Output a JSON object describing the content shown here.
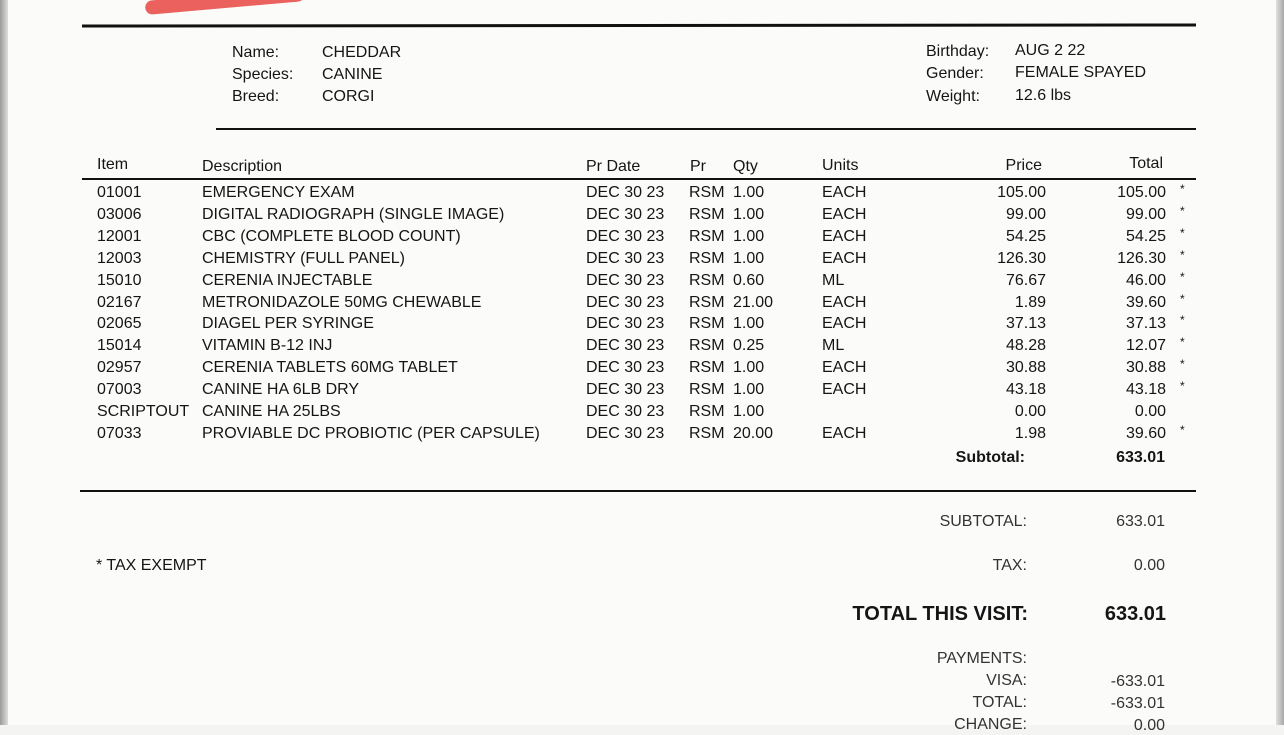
{
  "patient": {
    "name_label": "Name:",
    "name": "CHEDDAR",
    "species_label": "Species:",
    "species": "CANINE",
    "breed_label": "Breed:",
    "breed": "CORGI",
    "birthday_label": "Birthday:",
    "birthday": "AUG 2 22",
    "gender_label": "Gender:",
    "gender": "FEMALE SPAYED",
    "weight_label": "Weight:",
    "weight": "12.6 lbs"
  },
  "table": {
    "headers": {
      "item": "Item",
      "description": "Description",
      "pr_date": "Pr Date",
      "pr": "Pr",
      "qty": "Qty",
      "units": "Units",
      "price": "Price",
      "total": "Total"
    },
    "rows": [
      {
        "item": "01001",
        "description": "EMERGENCY EXAM",
        "pr_date": "DEC 30 23",
        "pr": "RSM",
        "qty": "1.00",
        "units": "EACH",
        "price": "105.00",
        "total": "105.00",
        "flag": "*"
      },
      {
        "item": "03006",
        "description": "DIGITAL RADIOGRAPH (SINGLE IMAGE)",
        "pr_date": "DEC 30 23",
        "pr": "RSM",
        "qty": "1.00",
        "units": "EACH",
        "price": "99.00",
        "total": "99.00",
        "flag": "*"
      },
      {
        "item": "12001",
        "description": "CBC (COMPLETE BLOOD COUNT)",
        "pr_date": "DEC 30 23",
        "pr": "RSM",
        "qty": "1.00",
        "units": "EACH",
        "price": "54.25",
        "total": "54.25",
        "flag": "*"
      },
      {
        "item": "12003",
        "description": "CHEMISTRY (FULL PANEL)",
        "pr_date": "DEC 30 23",
        "pr": "RSM",
        "qty": "1.00",
        "units": "EACH",
        "price": "126.30",
        "total": "126.30",
        "flag": "*"
      },
      {
        "item": "15010",
        "description": "CERENIA INJECTABLE",
        "pr_date": "DEC 30 23",
        "pr": "RSM",
        "qty": "0.60",
        "units": "ML",
        "price": "76.67",
        "total": "46.00",
        "flag": "*"
      },
      {
        "item": "02167",
        "description": "METRONIDAZOLE 50MG CHEWABLE",
        "pr_date": "DEC 30 23",
        "pr": "RSM",
        "qty": "21.00",
        "units": "EACH",
        "price": "1.89",
        "total": "39.60",
        "flag": "*"
      },
      {
        "item": "02065",
        "description": "DIAGEL PER SYRINGE",
        "pr_date": "DEC 30 23",
        "pr": "RSM",
        "qty": "1.00",
        "units": "EACH",
        "price": "37.13",
        "total": "37.13",
        "flag": "*"
      },
      {
        "item": "15014",
        "description": "VITAMIN B-12 INJ",
        "pr_date": "DEC 30 23",
        "pr": "RSM",
        "qty": "0.25",
        "units": "ML",
        "price": "48.28",
        "total": "12.07",
        "flag": "*"
      },
      {
        "item": "02957",
        "description": "CERENIA TABLETS 60MG TABLET",
        "pr_date": "DEC 30 23",
        "pr": "RSM",
        "qty": "1.00",
        "units": "EACH",
        "price": "30.88",
        "total": "30.88",
        "flag": "*"
      },
      {
        "item": "07003",
        "description": "CANINE HA 6LB DRY",
        "pr_date": "DEC 30 23",
        "pr": "RSM",
        "qty": "1.00",
        "units": "EACH",
        "price": "43.18",
        "total": "43.18",
        "flag": "*"
      },
      {
        "item": "SCRIPTOUT",
        "description": "CANINE HA 25LBS",
        "pr_date": "DEC 30 23",
        "pr": "RSM",
        "qty": "1.00",
        "units": "",
        "price": "0.00",
        "total": "0.00",
        "flag": ""
      },
      {
        "item": "07033",
        "description": "PROVIABLE DC PROBIOTIC (PER CAPSULE)",
        "pr_date": "DEC 30 23",
        "pr": "RSM",
        "qty": "20.00",
        "units": "EACH",
        "price": "1.98",
        "total": "39.60",
        "flag": "*"
      }
    ],
    "subtotal_label": "Subtotal:",
    "subtotal": "633.01"
  },
  "summary": {
    "tax_exempt_note": "* TAX EXEMPT",
    "subtotal_label": "SUBTOTAL:",
    "subtotal": "633.01",
    "tax_label": "TAX:",
    "tax": "0.00",
    "total_label": "TOTAL THIS VISIT:",
    "total": "633.01",
    "payments_label": "PAYMENTS:",
    "visa_label": "VISA:",
    "visa": "-633.01",
    "paid_total_label": "TOTAL:",
    "paid_total": "-633.01",
    "change_label": "CHANGE:",
    "change": "0.00"
  }
}
